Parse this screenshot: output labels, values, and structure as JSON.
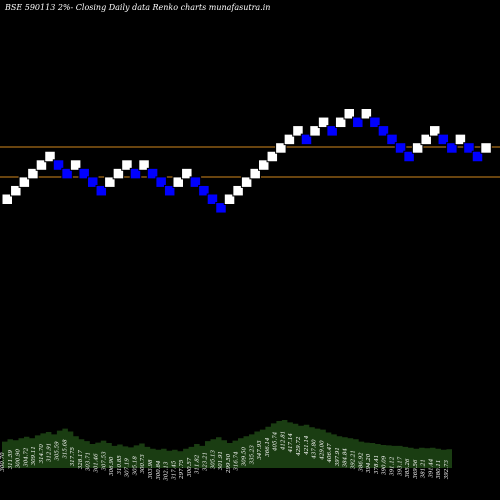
{
  "chart_data": {
    "type": "renko",
    "title": "BSE 590113 2%-  Closing Daily data  Renko  charts munafasutra.in",
    "colors": {
      "background": "#000000",
      "up_brick": "#ffffff",
      "down_brick": "#0000ff",
      "brick_border": "#000000",
      "level_lines": "#d2871e",
      "volume_fill": "#1a3d12",
      "label_text": "#ffffff"
    },
    "level_lines": [
      "upper",
      "lower"
    ],
    "bricks": [
      {
        "d": "up",
        "row": 0
      },
      {
        "d": "up",
        "row": 1
      },
      {
        "d": "up",
        "row": 2
      },
      {
        "d": "up",
        "row": 3
      },
      {
        "d": "up",
        "row": 4
      },
      {
        "d": "up",
        "row": 5
      },
      {
        "d": "down",
        "row": 4
      },
      {
        "d": "down",
        "row": 3
      },
      {
        "d": "up",
        "row": 4
      },
      {
        "d": "down",
        "row": 3
      },
      {
        "d": "down",
        "row": 2
      },
      {
        "d": "down",
        "row": 1
      },
      {
        "d": "up",
        "row": 2
      },
      {
        "d": "up",
        "row": 3
      },
      {
        "d": "up",
        "row": 4
      },
      {
        "d": "down",
        "row": 3
      },
      {
        "d": "up",
        "row": 4
      },
      {
        "d": "down",
        "row": 3
      },
      {
        "d": "down",
        "row": 2
      },
      {
        "d": "down",
        "row": 1
      },
      {
        "d": "up",
        "row": 2
      },
      {
        "d": "up",
        "row": 3
      },
      {
        "d": "down",
        "row": 2
      },
      {
        "d": "down",
        "row": 1
      },
      {
        "d": "down",
        "row": 0
      },
      {
        "d": "down",
        "row": -1
      },
      {
        "d": "up",
        "row": 0
      },
      {
        "d": "up",
        "row": 1
      },
      {
        "d": "up",
        "row": 2
      },
      {
        "d": "up",
        "row": 3
      },
      {
        "d": "up",
        "row": 4
      },
      {
        "d": "up",
        "row": 5
      },
      {
        "d": "up",
        "row": 6
      },
      {
        "d": "up",
        "row": 7
      },
      {
        "d": "up",
        "row": 8
      },
      {
        "d": "down",
        "row": 7
      },
      {
        "d": "up",
        "row": 8
      },
      {
        "d": "up",
        "row": 9
      },
      {
        "d": "down",
        "row": 8
      },
      {
        "d": "up",
        "row": 9
      },
      {
        "d": "up",
        "row": 10
      },
      {
        "d": "down",
        "row": 9
      },
      {
        "d": "up",
        "row": 10
      },
      {
        "d": "down",
        "row": 9
      },
      {
        "d": "down",
        "row": 8
      },
      {
        "d": "down",
        "row": 7
      },
      {
        "d": "down",
        "row": 6
      },
      {
        "d": "down",
        "row": 5
      },
      {
        "d": "up",
        "row": 6
      },
      {
        "d": "up",
        "row": 7
      },
      {
        "d": "up",
        "row": 8
      },
      {
        "d": "down",
        "row": 7
      },
      {
        "d": "down",
        "row": 6
      },
      {
        "d": "up",
        "row": 7
      },
      {
        "d": "down",
        "row": 6
      },
      {
        "d": "down",
        "row": 5
      },
      {
        "d": "up",
        "row": 6
      }
    ],
    "price_labels": [
      "300.70",
      "311.59",
      "300.90",
      "304.72",
      "309.11",
      "314.70",
      "312.91",
      "305.59",
      "315.68",
      "317.75",
      "328.17",
      "303.71",
      "301.46",
      "307.53",
      "306.90",
      "310.85",
      "307.19",
      "305.18",
      "300.73",
      "303.98",
      "300.84",
      "302.13",
      "317.45",
      "297.75",
      "300.57",
      "311.82",
      "323.21",
      "305.13",
      "301.91",
      "299.50",
      "316.74",
      "309.50",
      "335.23",
      "347.93",
      "366.14",
      "405.74",
      "412.81",
      "417.14",
      "429.72",
      "421.14",
      "437.80",
      "429.00",
      "406.47",
      "397.91",
      "384.84",
      "392.21",
      "386.92",
      "394.20",
      "378.41",
      "390.09",
      "391.12",
      "393.17",
      "385.26",
      "369.56",
      "381.21",
      "391.44",
      "380.11",
      "392.73"
    ],
    "volume_profile": [
      0.55,
      0.6,
      0.58,
      0.62,
      0.65,
      0.62,
      0.68,
      0.72,
      0.75,
      0.7,
      0.78,
      0.82,
      0.76,
      0.66,
      0.6,
      0.56,
      0.5,
      0.53,
      0.57,
      0.52,
      0.46,
      0.49,
      0.45,
      0.43,
      0.47,
      0.51,
      0.44,
      0.4,
      0.38,
      0.4,
      0.36,
      0.38,
      0.35,
      0.4,
      0.44,
      0.5,
      0.46,
      0.56,
      0.6,
      0.64,
      0.58,
      0.52,
      0.57,
      0.62,
      0.66,
      0.7,
      0.76,
      0.8,
      0.86,
      0.93,
      0.98,
      1.0,
      0.95,
      0.92,
      0.88,
      0.9,
      0.85,
      0.82,
      0.8,
      0.74,
      0.7,
      0.66,
      0.64,
      0.62,
      0.6,
      0.55,
      0.53,
      0.52,
      0.5,
      0.48,
      0.47,
      0.46,
      0.46,
      0.44,
      0.42,
      0.4,
      0.42,
      0.41,
      0.42,
      0.4,
      0.38,
      0.39
    ]
  }
}
